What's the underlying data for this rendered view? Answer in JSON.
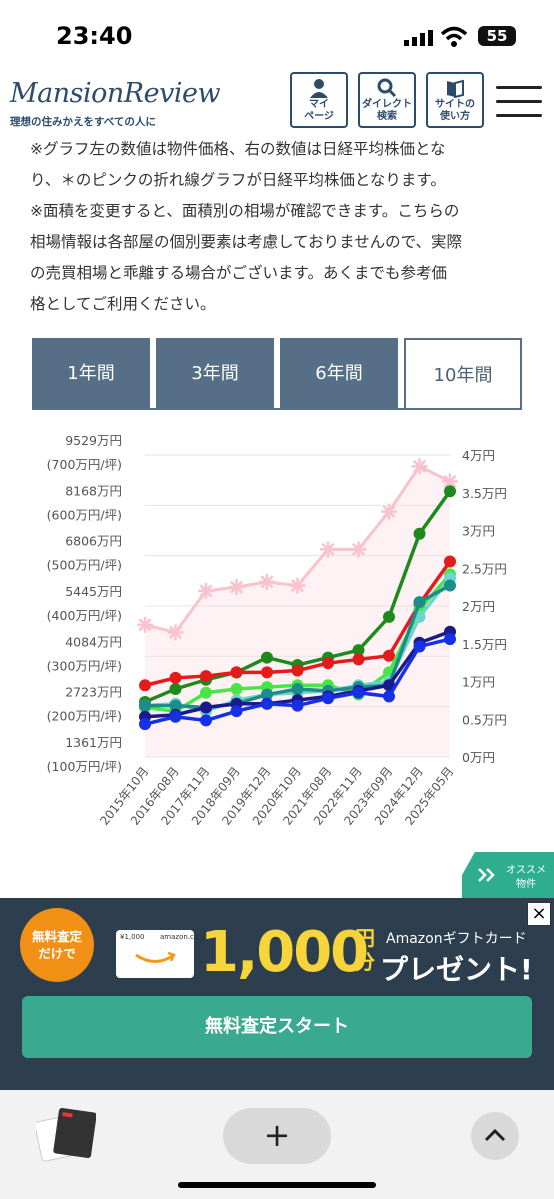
{
  "status": {
    "time": "23:40",
    "battery": "55"
  },
  "header": {
    "logo": "MansionReview",
    "tagline": "理想の住みかえをすべての人に",
    "buttons": [
      {
        "label1": "マイ",
        "label2": "ページ",
        "icon": "person-icon"
      },
      {
        "label1": "ダイレクト",
        "label2": "検索",
        "icon": "search-icon"
      },
      {
        "label1": "サイトの",
        "label2": "使い方",
        "icon": "book-icon"
      }
    ]
  },
  "notes": {
    "line1": "※グラフ左の数値は物件価格、右の数値は日経平均株価とな",
    "line2": "り、＊のピンクの折れ線グラフが日経平均株価となります。",
    "line3": "※面積を変更すると、面積別の相場が確認できます。こちらの",
    "line4": "相場情報は各部屋の個別要素は考慮しておりませんので、実際",
    "line5": "の売買相場と乖離する場合がございます。あくまでも参考価",
    "line6": "格としてご利用ください。"
  },
  "tabs": [
    {
      "label": "1年間",
      "active": false
    },
    {
      "label": "3年間",
      "active": false
    },
    {
      "label": "6年間",
      "active": false
    },
    {
      "label": "10年間",
      "active": true
    }
  ],
  "chart_data": {
    "type": "line",
    "x": [
      "2015年10月",
      "2016年08月",
      "2017年11月",
      "2018年09月",
      "2019年12月",
      "2020年10月",
      "2021年08月",
      "2022年11月",
      "2023年09月",
      "2024年12月",
      "2025年05月"
    ],
    "left_axis": {
      "ticks": [
        {
          "value": 9529,
          "label1": "9529万円",
          "label2": "(700万円/坪)"
        },
        {
          "value": 8168,
          "label1": "8168万円",
          "label2": "(600万円/坪)"
        },
        {
          "value": 6806,
          "label1": "6806万円",
          "label2": "(500万円/坪)"
        },
        {
          "value": 5445,
          "label1": "5445万円",
          "label2": "(400万円/坪)"
        },
        {
          "value": 4084,
          "label1": "4084万円",
          "label2": "(300万円/坪)"
        },
        {
          "value": 2723,
          "label1": "2723万円",
          "label2": "(200万円/坪)"
        },
        {
          "value": 1361,
          "label1": "1361万円",
          "label2": "(100万円/坪)"
        }
      ],
      "range": [
        1361,
        9529
      ]
    },
    "right_axis": {
      "ticks": [
        "4万円",
        "3.5万円",
        "3万円",
        "2.5万円",
        "2万円",
        "1.5万円",
        "1万円",
        "0.5万円",
        "0万円"
      ],
      "range": [
        0,
        4
      ]
    },
    "grid": true,
    "series": [
      {
        "axis": "right",
        "color": "#f8c3cc",
        "marker": "asterisk",
        "values": [
          1.75,
          1.65,
          2.2,
          2.25,
          2.32,
          2.27,
          2.75,
          2.75,
          3.25,
          3.85,
          3.65
        ]
      },
      {
        "axis": "left",
        "color": "#1e8a1e",
        "marker": "circle",
        "values": [
          2850,
          3200,
          3450,
          3650,
          4050,
          3850,
          4050,
          4250,
          5150,
          7400,
          8550
        ]
      },
      {
        "axis": "left",
        "color": "#e51b1b",
        "marker": "circle",
        "values": [
          3300,
          3500,
          3550,
          3650,
          3650,
          3700,
          3900,
          4000,
          4100,
          5500,
          6650
        ]
      },
      {
        "axis": "left",
        "color": "#46e646",
        "marker": "circle",
        "values": [
          2700,
          2600,
          3100,
          3200,
          3250,
          3300,
          3300,
          3050,
          3650,
          5350,
          6300
        ]
      },
      {
        "axis": "left",
        "color": "#6ad7cb",
        "marker": "circle",
        "values": [
          2750,
          2800,
          2600,
          2900,
          3050,
          3100,
          3150,
          3300,
          3400,
          5150,
          6200
        ]
      },
      {
        "axis": "left",
        "color": "#1f8c8c",
        "marker": "circle",
        "values": [
          2750,
          2750,
          2700,
          2800,
          3050,
          3200,
          3150,
          3250,
          3300,
          5550,
          6000
        ]
      },
      {
        "axis": "left",
        "color": "#1a1a8c",
        "marker": "circle",
        "values": [
          2450,
          2500,
          2700,
          2800,
          2800,
          2900,
          3000,
          3150,
          3300,
          4450,
          4750
        ]
      },
      {
        "axis": "left",
        "color": "#1530e6",
        "marker": "circle",
        "values": [
          2250,
          2450,
          2350,
          2600,
          2800,
          2750,
          2950,
          3100,
          3000,
          4350,
          4550
        ]
      }
    ]
  },
  "recommend": {
    "label1": "オススメ",
    "label2": "物件"
  },
  "ad": {
    "circle1": "無料査定",
    "circle2": "だけで",
    "card_text": "amazon.co.jp",
    "card_amount": "¥1,000",
    "big": "1,000",
    "yen1": "円",
    "yen2": "分",
    "gift": "Amazonギフトカード",
    "present": "プレゼント!",
    "button": "無料査定スタート",
    "close": "×"
  },
  "browser": {
    "plus": "+"
  }
}
